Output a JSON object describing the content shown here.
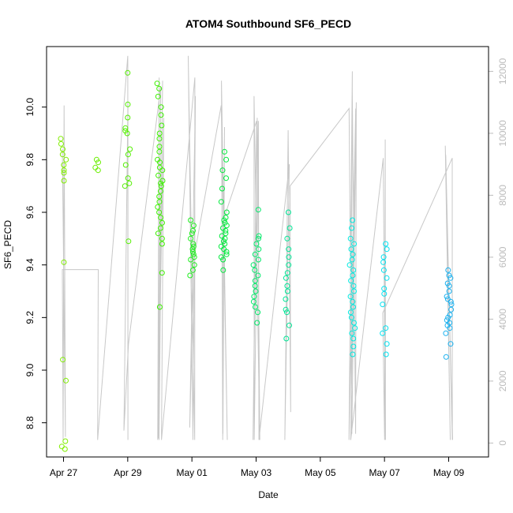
{
  "chart_data": {
    "type": "scatter",
    "title": "ATOM4 Southbound SF6_PECD",
    "xlabel": "Date",
    "ylabel": "SF6_PECD",
    "y2label": "",
    "x_ticks": [
      "Apr 27",
      "Apr 29",
      "May 01",
      "May 03",
      "May 05",
      "May 07",
      "May 09"
    ],
    "xlim": [
      "2017-04-26.6",
      "2017-05-10.3"
    ],
    "ylim": [
      8.67,
      10.23
    ],
    "y_ticks": [
      8.8,
      9.0,
      9.2,
      9.4,
      9.6,
      9.8,
      10.0
    ],
    "y2lim": [
      -450,
      12800
    ],
    "y2_ticks": [
      0,
      2000,
      4000,
      6000,
      8000,
      10000,
      12000
    ],
    "grid": false,
    "color_scale": "green to blue by date",
    "series": [
      {
        "values": [
          {
            "x": "Apr 27",
            "y": 9.88
          },
          {
            "x": "Apr 27",
            "y": 9.86
          },
          {
            "x": "Apr 27",
            "y": 9.84
          },
          {
            "x": "Apr 27",
            "y": 9.82
          },
          {
            "x": "Apr 27",
            "y": 9.8
          },
          {
            "x": "Apr 27",
            "y": 9.78
          },
          {
            "x": "Apr 27",
            "y": 9.76
          },
          {
            "x": "Apr 27",
            "y": 9.75
          },
          {
            "x": "Apr 27",
            "y": 9.72
          },
          {
            "x": "Apr 27",
            "y": 9.41
          },
          {
            "x": "Apr 27",
            "y": 9.04
          },
          {
            "x": "Apr 27",
            "y": 8.96
          },
          {
            "x": "Apr 27",
            "y": 8.73
          },
          {
            "x": "Apr 27",
            "y": 8.71
          },
          {
            "x": "Apr 27",
            "y": 8.7
          },
          {
            "x": "Apr 28",
            "y": 9.8
          },
          {
            "x": "Apr 28",
            "y": 9.79
          },
          {
            "x": "Apr 28",
            "y": 9.77
          },
          {
            "x": "Apr 28",
            "y": 9.76
          },
          {
            "x": "Apr 29",
            "y": 10.13
          },
          {
            "x": "Apr 29",
            "y": 10.01
          },
          {
            "x": "Apr 29",
            "y": 9.96
          },
          {
            "x": "Apr 29",
            "y": 9.92
          },
          {
            "x": "Apr 29",
            "y": 9.91
          },
          {
            "x": "Apr 29",
            "y": 9.9
          },
          {
            "x": "Apr 29",
            "y": 9.84
          },
          {
            "x": "Apr 29",
            "y": 9.82
          },
          {
            "x": "Apr 29",
            "y": 9.78
          },
          {
            "x": "Apr 29",
            "y": 9.73
          },
          {
            "x": "Apr 29",
            "y": 9.71
          },
          {
            "x": "Apr 29",
            "y": 9.7
          },
          {
            "x": "Apr 29",
            "y": 9.49
          },
          {
            "x": "Apr 30",
            "y": 10.09
          },
          {
            "x": "Apr 30",
            "y": 10.07
          },
          {
            "x": "Apr 30",
            "y": 10.04
          },
          {
            "x": "Apr 30",
            "y": 10.0
          },
          {
            "x": "Apr 30",
            "y": 9.97
          },
          {
            "x": "Apr 30",
            "y": 9.93
          },
          {
            "x": "Apr 30",
            "y": 9.9
          },
          {
            "x": "Apr 30",
            "y": 9.88
          },
          {
            "x": "Apr 30",
            "y": 9.85
          },
          {
            "x": "Apr 30",
            "y": 9.83
          },
          {
            "x": "Apr 30",
            "y": 9.8
          },
          {
            "x": "Apr 30",
            "y": 9.79
          },
          {
            "x": "Apr 30",
            "y": 9.77
          },
          {
            "x": "Apr 30",
            "y": 9.76
          },
          {
            "x": "Apr 30",
            "y": 9.74
          },
          {
            "x": "Apr 30",
            "y": 9.72
          },
          {
            "x": "Apr 30",
            "y": 9.71
          },
          {
            "x": "Apr 30",
            "y": 9.7
          },
          {
            "x": "Apr 30",
            "y": 9.68
          },
          {
            "x": "Apr 30",
            "y": 9.66
          },
          {
            "x": "Apr 30",
            "y": 9.64
          },
          {
            "x": "Apr 30",
            "y": 9.62
          },
          {
            "x": "Apr 30",
            "y": 9.6
          },
          {
            "x": "Apr 30",
            "y": 9.58
          },
          {
            "x": "Apr 30",
            "y": 9.56
          },
          {
            "x": "Apr 30",
            "y": 9.54
          },
          {
            "x": "Apr 30",
            "y": 9.52
          },
          {
            "x": "Apr 30",
            "y": 9.5
          },
          {
            "x": "Apr 30",
            "y": 9.48
          },
          {
            "x": "Apr 30",
            "y": 9.37
          },
          {
            "x": "Apr 30",
            "y": 9.24
          },
          {
            "x": "May 01",
            "y": 9.57
          },
          {
            "x": "May 01",
            "y": 9.55
          },
          {
            "x": "May 01",
            "y": 9.53
          },
          {
            "x": "May 01",
            "y": 9.52
          },
          {
            "x": "May 01",
            "y": 9.5
          },
          {
            "x": "May 01",
            "y": 9.48
          },
          {
            "x": "May 01",
            "y": 9.47
          },
          {
            "x": "May 01",
            "y": 9.46
          },
          {
            "x": "May 01",
            "y": 9.45
          },
          {
            "x": "May 01",
            "y": 9.44
          },
          {
            "x": "May 01",
            "y": 9.43
          },
          {
            "x": "May 01",
            "y": 9.42
          },
          {
            "x": "May 01",
            "y": 9.4
          },
          {
            "x": "May 01",
            "y": 9.38
          },
          {
            "x": "May 01",
            "y": 9.36
          },
          {
            "x": "May 02",
            "y": 9.83
          },
          {
            "x": "May 02",
            "y": 9.8
          },
          {
            "x": "May 02",
            "y": 9.76
          },
          {
            "x": "May 02",
            "y": 9.73
          },
          {
            "x": "May 02",
            "y": 9.69
          },
          {
            "x": "May 02",
            "y": 9.64
          },
          {
            "x": "May 02",
            "y": 9.6
          },
          {
            "x": "May 02",
            "y": 9.58
          },
          {
            "x": "May 02",
            "y": 9.57
          },
          {
            "x": "May 02",
            "y": 9.56
          },
          {
            "x": "May 02",
            "y": 9.55
          },
          {
            "x": "May 02",
            "y": 9.54
          },
          {
            "x": "May 02",
            "y": 9.53
          },
          {
            "x": "May 02",
            "y": 9.52
          },
          {
            "x": "May 02",
            "y": 9.51
          },
          {
            "x": "May 02",
            "y": 9.5
          },
          {
            "x": "May 02",
            "y": 9.49
          },
          {
            "x": "May 02",
            "y": 9.48
          },
          {
            "x": "May 02",
            "y": 9.47
          },
          {
            "x": "May 02",
            "y": 9.46
          },
          {
            "x": "May 02",
            "y": 9.45
          },
          {
            "x": "May 02",
            "y": 9.44
          },
          {
            "x": "May 02",
            "y": 9.43
          },
          {
            "x": "May 02",
            "y": 9.42
          },
          {
            "x": "May 02",
            "y": 9.38
          },
          {
            "x": "May 03",
            "y": 9.61
          },
          {
            "x": "May 03",
            "y": 9.51
          },
          {
            "x": "May 03",
            "y": 9.5
          },
          {
            "x": "May 03",
            "y": 9.48
          },
          {
            "x": "May 03",
            "y": 9.46
          },
          {
            "x": "May 03",
            "y": 9.44
          },
          {
            "x": "May 03",
            "y": 9.42
          },
          {
            "x": "May 03",
            "y": 9.4
          },
          {
            "x": "May 03",
            "y": 9.38
          },
          {
            "x": "May 03",
            "y": 9.36
          },
          {
            "x": "May 03",
            "y": 9.34
          },
          {
            "x": "May 03",
            "y": 9.32
          },
          {
            "x": "May 03",
            "y": 9.3
          },
          {
            "x": "May 03",
            "y": 9.28
          },
          {
            "x": "May 03",
            "y": 9.26
          },
          {
            "x": "May 03",
            "y": 9.24
          },
          {
            "x": "May 03",
            "y": 9.22
          },
          {
            "x": "May 03",
            "y": 9.18
          },
          {
            "x": "May 04",
            "y": 9.6
          },
          {
            "x": "May 04",
            "y": 9.54
          },
          {
            "x": "May 04",
            "y": 9.5
          },
          {
            "x": "May 04",
            "y": 9.46
          },
          {
            "x": "May 04",
            "y": 9.43
          },
          {
            "x": "May 04",
            "y": 9.4
          },
          {
            "x": "May 04",
            "y": 9.37
          },
          {
            "x": "May 04",
            "y": 9.35
          },
          {
            "x": "May 04",
            "y": 9.32
          },
          {
            "x": "May 04",
            "y": 9.3
          },
          {
            "x": "May 04",
            "y": 9.27
          },
          {
            "x": "May 04",
            "y": 9.23
          },
          {
            "x": "May 04",
            "y": 9.22
          },
          {
            "x": "May 04",
            "y": 9.17
          },
          {
            "x": "May 04",
            "y": 9.12
          },
          {
            "x": "May 06",
            "y": 9.57
          },
          {
            "x": "May 06",
            "y": 9.54
          },
          {
            "x": "May 06",
            "y": 9.5
          },
          {
            "x": "May 06",
            "y": 9.48
          },
          {
            "x": "May 06",
            "y": 9.46
          },
          {
            "x": "May 06",
            "y": 9.44
          },
          {
            "x": "May 06",
            "y": 9.42
          },
          {
            "x": "May 06",
            "y": 9.4
          },
          {
            "x": "May 06",
            "y": 9.38
          },
          {
            "x": "May 06",
            "y": 9.36
          },
          {
            "x": "May 06",
            "y": 9.34
          },
          {
            "x": "May 06",
            "y": 9.32
          },
          {
            "x": "May 06",
            "y": 9.3
          },
          {
            "x": "May 06",
            "y": 9.28
          },
          {
            "x": "May 06",
            "y": 9.26
          },
          {
            "x": "May 06",
            "y": 9.24
          },
          {
            "x": "May 06",
            "y": 9.22
          },
          {
            "x": "May 06",
            "y": 9.2
          },
          {
            "x": "May 06",
            "y": 9.18
          },
          {
            "x": "May 06",
            "y": 9.16
          },
          {
            "x": "May 06",
            "y": 9.14
          },
          {
            "x": "May 06",
            "y": 9.12
          },
          {
            "x": "May 06",
            "y": 9.09
          },
          {
            "x": "May 06",
            "y": 9.06
          },
          {
            "x": "May 07",
            "y": 9.48
          },
          {
            "x": "May 07",
            "y": 9.46
          },
          {
            "x": "May 07",
            "y": 9.43
          },
          {
            "x": "May 07",
            "y": 9.41
          },
          {
            "x": "May 07",
            "y": 9.38
          },
          {
            "x": "May 07",
            "y": 9.35
          },
          {
            "x": "May 07",
            "y": 9.31
          },
          {
            "x": "May 07",
            "y": 9.29
          },
          {
            "x": "May 07",
            "y": 9.25
          },
          {
            "x": "May 07",
            "y": 9.16
          },
          {
            "x": "May 07",
            "y": 9.14
          },
          {
            "x": "May 07",
            "y": 9.1
          },
          {
            "x": "May 07",
            "y": 9.06
          },
          {
            "x": "May 09",
            "y": 9.38
          },
          {
            "x": "May 09",
            "y": 9.36
          },
          {
            "x": "May 09",
            "y": 9.35
          },
          {
            "x": "May 09",
            "y": 9.33
          },
          {
            "x": "May 09",
            "y": 9.32
          },
          {
            "x": "May 09",
            "y": 9.3
          },
          {
            "x": "May 09",
            "y": 9.28
          },
          {
            "x": "May 09",
            "y": 9.27
          },
          {
            "x": "May 09",
            "y": 9.26
          },
          {
            "x": "May 09",
            "y": 9.25
          },
          {
            "x": "May 09",
            "y": 9.23
          },
          {
            "x": "May 09",
            "y": 9.21
          },
          {
            "x": "May 09",
            "y": 9.2
          },
          {
            "x": "May 09",
            "y": 9.19
          },
          {
            "x": "May 09",
            "y": 9.18
          },
          {
            "x": "May 09",
            "y": 9.17
          },
          {
            "x": "May 09",
            "y": 9.16
          },
          {
            "x": "May 09",
            "y": 9.14
          },
          {
            "x": "May 09",
            "y": 9.1
          },
          {
            "x": "May 09",
            "y": 9.05
          }
        ]
      }
    ],
    "secondary_series": {
      "color": "#c8c8c8",
      "type": "line",
      "values": [
        {
          "x": "Apr 27",
          "y": 9500
        },
        {
          "x": "Apr 27",
          "y": 200
        },
        {
          "x": "Apr 27",
          "y": 10900
        },
        {
          "x": "Apr 27",
          "y": 100
        },
        {
          "x": "Apr 27",
          "y": 5600
        },
        {
          "x": "Apr 28",
          "y": 5600
        },
        {
          "x": "Apr 28",
          "y": 100
        },
        {
          "x": "Apr 29",
          "y": 12500
        },
        {
          "x": "Apr 29",
          "y": 100
        },
        {
          "x": "Apr 29",
          "y": 11000
        },
        {
          "x": "Apr 29",
          "y": 400
        },
        {
          "x": "Apr 29",
          "y": 3200
        },
        {
          "x": "Apr 30",
          "y": 11500
        },
        {
          "x": "Apr 30",
          "y": 100
        },
        {
          "x": "Apr 30",
          "y": 11700
        },
        {
          "x": "Apr 30",
          "y": 150
        },
        {
          "x": "Apr 30",
          "y": 11800
        },
        {
          "x": "Apr 30",
          "y": 100
        },
        {
          "x": "Apr 30",
          "y": 10500
        },
        {
          "x": "Apr 30",
          "y": 100
        },
        {
          "x": "May 01",
          "y": 11800
        },
        {
          "x": "May 01",
          "y": 100
        },
        {
          "x": "May 01",
          "y": 12500
        },
        {
          "x": "May 01",
          "y": 100
        },
        {
          "x": "May 01",
          "y": 11200
        },
        {
          "x": "May 01",
          "y": 500
        },
        {
          "x": "May 01",
          "y": 6000
        },
        {
          "x": "May 02",
          "y": 10900
        },
        {
          "x": "May 02",
          "y": 100
        },
        {
          "x": "May 02",
          "y": 11700
        },
        {
          "x": "May 02",
          "y": 100
        },
        {
          "x": "May 02",
          "y": 10200
        },
        {
          "x": "May 02",
          "y": 300
        },
        {
          "x": "May 02",
          "y": 7200
        },
        {
          "x": "May 03",
          "y": 10400
        },
        {
          "x": "May 03",
          "y": 100
        },
        {
          "x": "May 03",
          "y": 10500
        },
        {
          "x": "May 03",
          "y": 100
        },
        {
          "x": "May 03",
          "y": 11200
        },
        {
          "x": "May 03",
          "y": 100
        },
        {
          "x": "May 03",
          "y": 10400
        },
        {
          "x": "May 03",
          "y": 100
        },
        {
          "x": "May 04",
          "y": 9000
        },
        {
          "x": "May 04",
          "y": 100
        },
        {
          "x": "May 04",
          "y": 10100
        },
        {
          "x": "May 04",
          "y": 1000
        },
        {
          "x": "May 04",
          "y": 8300
        },
        {
          "x": "May 06",
          "y": 10800
        },
        {
          "x": "May 06",
          "y": 300
        },
        {
          "x": "May 06",
          "y": 11000
        },
        {
          "x": "May 06",
          "y": 300
        },
        {
          "x": "May 06",
          "y": 11500
        },
        {
          "x": "May 06",
          "y": 400
        },
        {
          "x": "May 06",
          "y": 12000
        },
        {
          "x": "May 06",
          "y": 100
        },
        {
          "x": "May 06",
          "y": 10800
        },
        {
          "x": "May 06",
          "y": 100
        },
        {
          "x": "May 07",
          "y": 9200
        },
        {
          "x": "May 07",
          "y": 100
        },
        {
          "x": "May 07",
          "y": 9800
        },
        {
          "x": "May 07",
          "y": 100
        },
        {
          "x": "May 07",
          "y": 4200
        },
        {
          "x": "May 09",
          "y": 9200
        },
        {
          "x": "May 09",
          "y": 100
        },
        {
          "x": "May 09",
          "y": 9300
        },
        {
          "x": "May 09",
          "y": 100
        },
        {
          "x": "May 09",
          "y": 9600
        },
        {
          "x": "May 09",
          "y": 100
        }
      ]
    }
  }
}
